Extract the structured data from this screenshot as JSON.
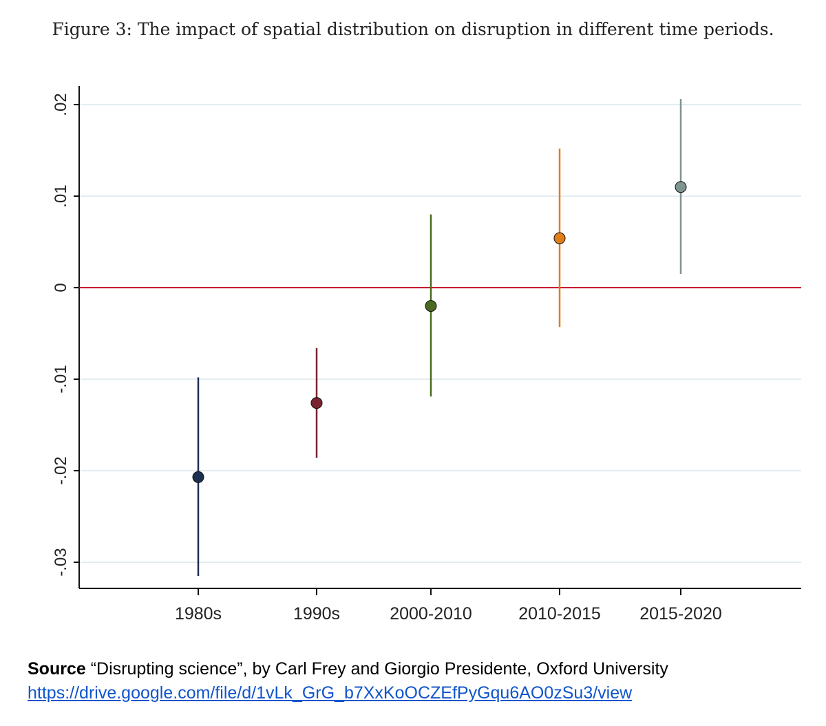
{
  "figure": {
    "title": "Figure 3: The impact of spatial distribution on disruption in different time periods."
  },
  "chart_data": {
    "type": "scatter",
    "subtype": "coefficient-plot-with-confidence-intervals",
    "title": "",
    "xlabel": "",
    "ylabel": "",
    "categories": [
      "1980s",
      "1990s",
      "2000-2010",
      "2010-2015",
      "2015-2020"
    ],
    "points": [
      {
        "category": "1980s",
        "estimate": -0.0207,
        "ci_low": -0.0315,
        "ci_high": -0.0098,
        "color": "#1c2f4f"
      },
      {
        "category": "1990s",
        "estimate": -0.0126,
        "ci_low": -0.0186,
        "ci_high": -0.0066,
        "color": "#7a2430"
      },
      {
        "category": "2000-2010",
        "estimate": -0.002,
        "ci_low": -0.0119,
        "ci_high": 0.008,
        "color": "#4a6a1f"
      },
      {
        "category": "2010-2015",
        "estimate": 0.0054,
        "ci_low": -0.0043,
        "ci_high": 0.0152,
        "color": "#e07e18"
      },
      {
        "category": "2015-2020",
        "estimate": 0.011,
        "ci_low": 0.0015,
        "ci_high": 0.0206,
        "color": "#7e9490"
      }
    ],
    "yticks": [
      -0.03,
      -0.02,
      -0.01,
      0,
      0.01,
      0.02
    ],
    "ytick_labels": [
      "-.03",
      "-.02",
      "-.01",
      "0",
      ".01",
      ".02"
    ],
    "ylim": [
      -0.032,
      0.022
    ],
    "reference_line": {
      "y": 0,
      "color": "#c8102e"
    },
    "grid": true,
    "grid_color": "#e4ecf0"
  },
  "source": {
    "label": "Source",
    "text": " “Disrupting science”, by Carl Frey and Giorgio Presidente, Oxford University",
    "url": "https://drive.google.com/file/d/1vLk_GrG_b7XxKoOCZEfPyGqu6AO0zSu3/view"
  }
}
